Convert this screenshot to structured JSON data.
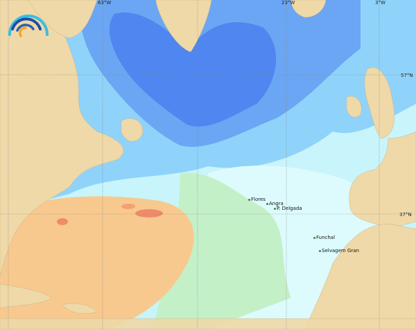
{
  "map": {
    "grid_labels": {
      "lon": [
        "63°W",
        "23°W",
        "3°W"
      ],
      "lat": [
        "57°N",
        "37°N"
      ]
    },
    "places": [
      "Flores",
      "Angra",
      "P. Delgada",
      "Funchal",
      "Selvagem Gran"
    ],
    "colors": {
      "land": "#efd9a8",
      "deep_blue": "#4f86f0",
      "blue": "#6aa6f3",
      "light_blue": "#8fd3fa",
      "cyan": "#b5effc",
      "pale": "#ddfbfd",
      "green": "#c4f0c8",
      "orange": "#f8c98e",
      "red": "#f08a6a"
    },
    "logo": {
      "icon": "arc-rainbow-logo"
    }
  }
}
